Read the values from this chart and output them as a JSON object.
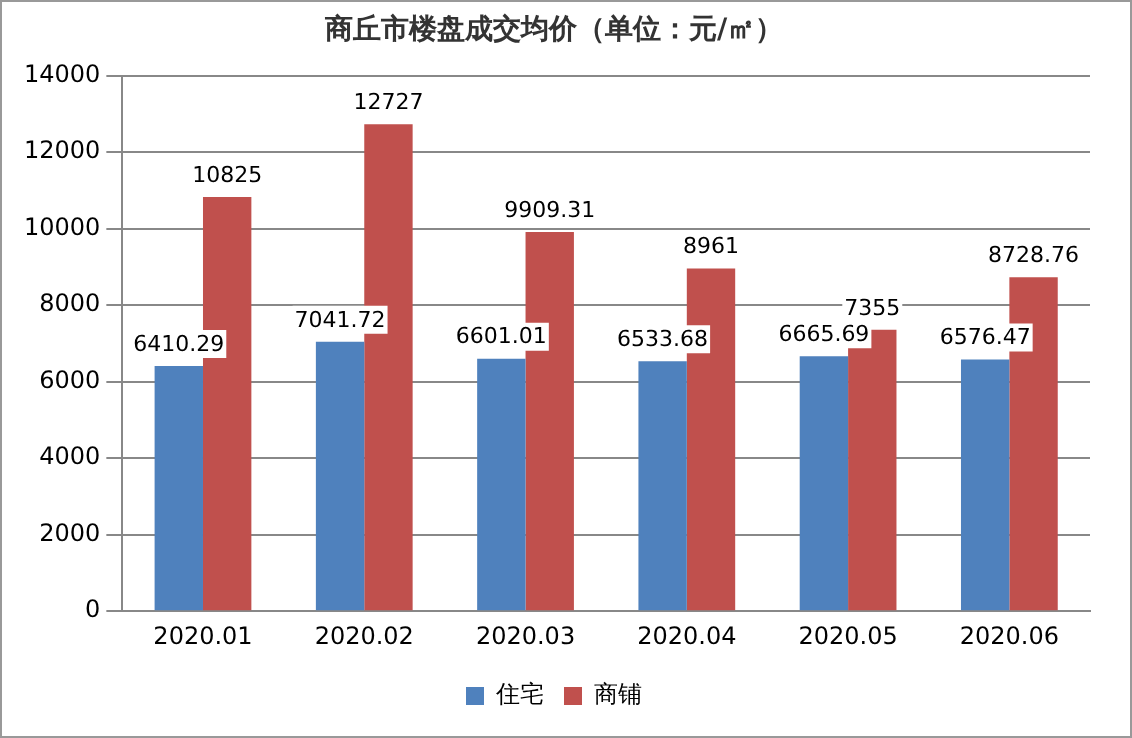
{
  "chart_data": {
    "type": "bar",
    "title": "商丘市楼盘成交均价（单位：元/㎡）",
    "categories": [
      "2020.01",
      "2020.02",
      "2020.03",
      "2020.04",
      "2020.05",
      "2020.06"
    ],
    "series": [
      {
        "name": "住宅",
        "color": "#4f81bd",
        "values": [
          6410.29,
          7041.72,
          6601.01,
          6533.68,
          6665.69,
          6576.47
        ]
      },
      {
        "name": "商铺",
        "color": "#c0504d",
        "values": [
          10825,
          12727,
          9909.31,
          8961,
          7355,
          8728.76
        ]
      }
    ],
    "ylim": [
      0,
      14000
    ],
    "yticks": [
      0,
      2000,
      4000,
      6000,
      8000,
      10000,
      12000,
      14000
    ],
    "grid": "y",
    "legend": "bottom",
    "data_labels": true
  }
}
